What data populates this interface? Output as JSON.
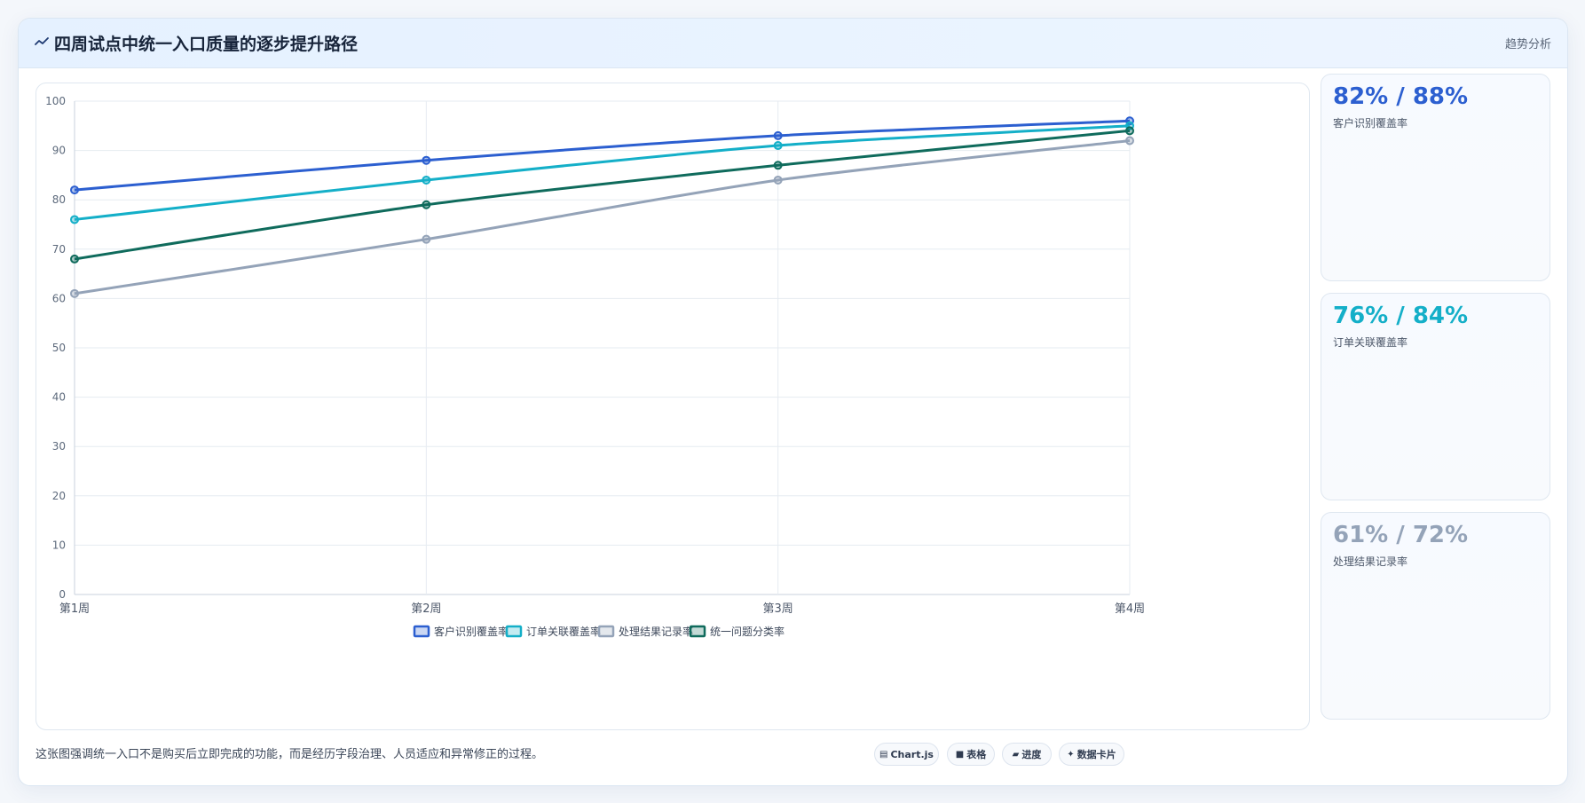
{
  "header": {
    "title": "四周试点中统一入口质量的逐步提升路径",
    "tag": "趋势分析",
    "icon": "trend-line-icon"
  },
  "chart_data": {
    "type": "line",
    "categories": [
      "第1周",
      "第2周",
      "第3周",
      "第4周"
    ],
    "ylim": [
      0,
      100
    ],
    "yticks": [
      0,
      10,
      20,
      30,
      40,
      50,
      60,
      70,
      80,
      90,
      100
    ],
    "grid": true,
    "legend_position": "bottom",
    "series": [
      {
        "name": "客户识别覆盖率",
        "color": "#2c5fd0",
        "values": [
          82,
          88,
          93,
          96
        ]
      },
      {
        "name": "订单关联覆盖率",
        "color": "#14afc8",
        "values": [
          76,
          84,
          91,
          95
        ]
      },
      {
        "name": "处理结果记录率",
        "color": "#94a3b8",
        "values": [
          61,
          72,
          84,
          92
        ]
      },
      {
        "name": "统一问题分类率",
        "color": "#0f6b5c",
        "values": [
          68,
          79,
          87,
          94
        ]
      }
    ]
  },
  "kpis": [
    {
      "value": "82% / 88%",
      "label": "客户识别覆盖率",
      "color": "#2c5fd0"
    },
    {
      "value": "76% / 84%",
      "label": "订单关联覆盖率",
      "color": "#14afc8"
    },
    {
      "value": "61% / 72%",
      "label": "处理结果记录率",
      "color": "#94a3b8"
    }
  ],
  "footer": {
    "note": "这张图强调统一入口不是购买后立即完成的功能，而是经历字段治理、人员适应和异常修正的过程。",
    "pills": [
      {
        "icon": "chart-icon",
        "glyph": "▤",
        "label": "Chart.js"
      },
      {
        "icon": "table-icon",
        "glyph": "■",
        "label": "表格"
      },
      {
        "icon": "progress-icon",
        "glyph": "▰",
        "label": "进度"
      },
      {
        "icon": "card-icon",
        "glyph": "✦",
        "label": "数据卡片"
      }
    ]
  }
}
